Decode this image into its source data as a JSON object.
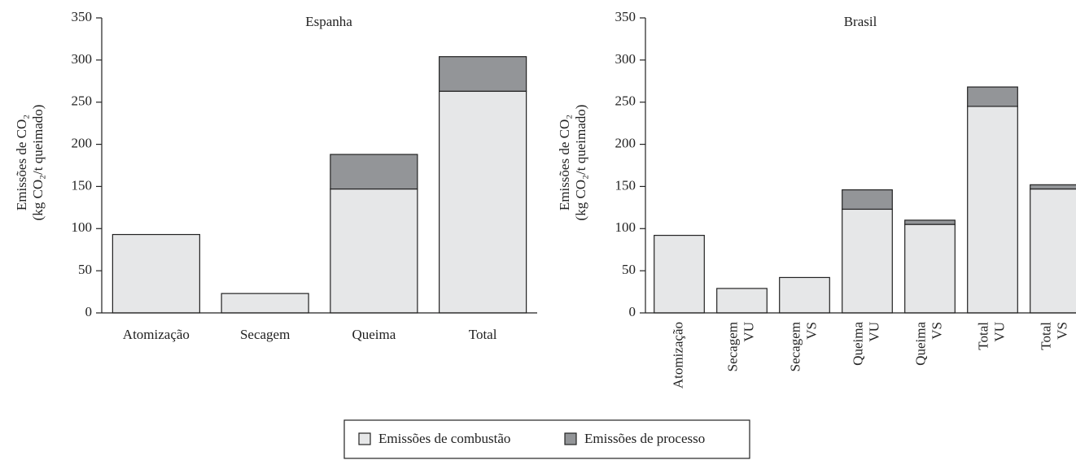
{
  "chart_data": [
    {
      "type": "stacked_bar",
      "title": "Espanha",
      "ylabel": [
        "Emissões de CO₂",
        "(kg CO₂/t queimado)"
      ],
      "categories": [
        [
          "Atomização"
        ],
        [
          "Secagem"
        ],
        [
          "Queima"
        ],
        [
          "Total"
        ]
      ],
      "series": [
        {
          "name": "Emissões de combustão",
          "color": "#e6e7e8",
          "values": [
            93,
            23,
            147,
            263
          ]
        },
        {
          "name": "Emissões de processo",
          "color": "#939598",
          "values": [
            0,
            0,
            41,
            41
          ]
        }
      ],
      "ylim": [
        0,
        350
      ],
      "yticks": [
        0,
        50,
        100,
        150,
        200,
        250,
        300,
        350
      ]
    },
    {
      "type": "stacked_bar",
      "title": "Brasil",
      "ylabel": [
        "Emissões de CO₂",
        "(kg CO₂/t queimado)"
      ],
      "categories": [
        [
          "Atomização"
        ],
        [
          "Secagem",
          "VU"
        ],
        [
          "Secagem",
          "VS"
        ],
        [
          "Queima",
          "VU"
        ],
        [
          "Queima",
          "VS"
        ],
        [
          "Total",
          "VU"
        ],
        [
          "Total",
          "VS"
        ]
      ],
      "series": [
        {
          "color": "#e6e7e8",
          "values": [
            92,
            29,
            42,
            123,
            105,
            245,
            147
          ]
        },
        {
          "color": "#939598",
          "values": [
            0,
            0,
            0,
            23,
            5,
            23,
            5
          ]
        }
      ],
      "ylim": [
        0,
        350
      ],
      "yticks": [
        0,
        50,
        100,
        150,
        200,
        250,
        300,
        350
      ]
    }
  ]
}
